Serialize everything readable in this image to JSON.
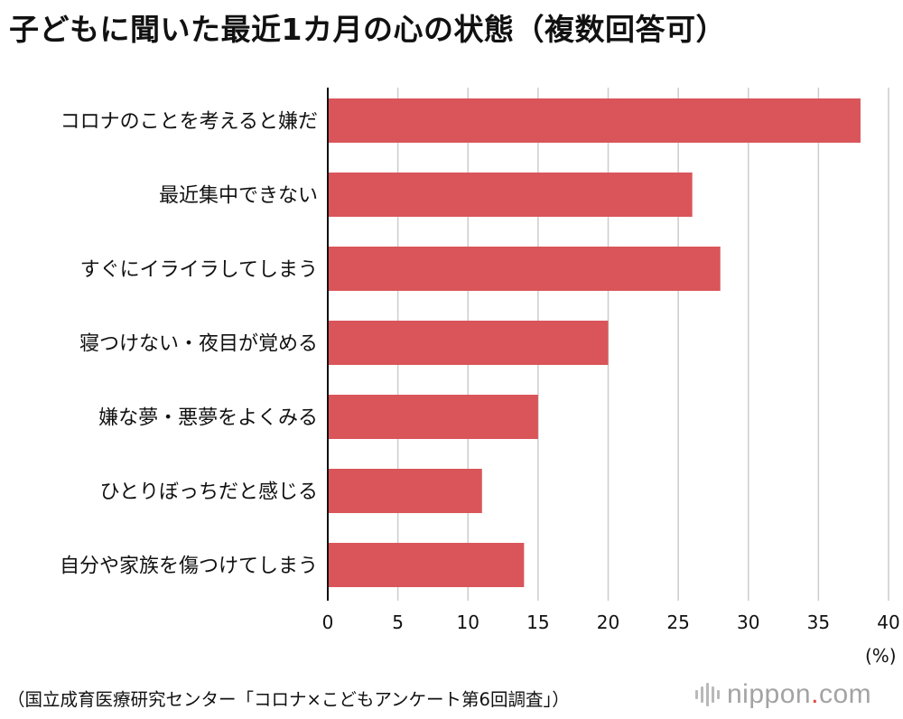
{
  "header": {
    "title": "子どもに聞いた最近1カ月の心の状態（複数回答可）"
  },
  "chart_data": {
    "type": "bar",
    "orientation": "horizontal",
    "title": "子どもに聞いた最近1カ月の心の状態（複数回答可）",
    "categories": [
      "コロナのことを考えると嫌だ",
      "最近集中できない",
      "すぐにイライラしてしまう",
      "寝つけない・夜目が覚める",
      "嫌な夢・悪夢をよくみる",
      "ひとりぼっちだと感じる",
      "自分や家族を傷つけてしまう"
    ],
    "values": [
      38,
      26,
      28,
      20,
      15,
      11,
      14
    ],
    "xlim": [
      0,
      40
    ],
    "xticks": [
      "0",
      "5",
      "10",
      "15",
      "20",
      "25",
      "30",
      "35",
      "40"
    ],
    "x_unit": "(%)",
    "grid": true,
    "bar_color": "#d9555a",
    "grid_color": "#cccccc"
  },
  "footer": {
    "source": "（国立成育医療研究センター「コロナ×こどもアンケート第6回調査」）",
    "brand_name": "nippon",
    "brand_dot": ".",
    "brand_tld": "com",
    "brand_accent": "#e0453e"
  }
}
